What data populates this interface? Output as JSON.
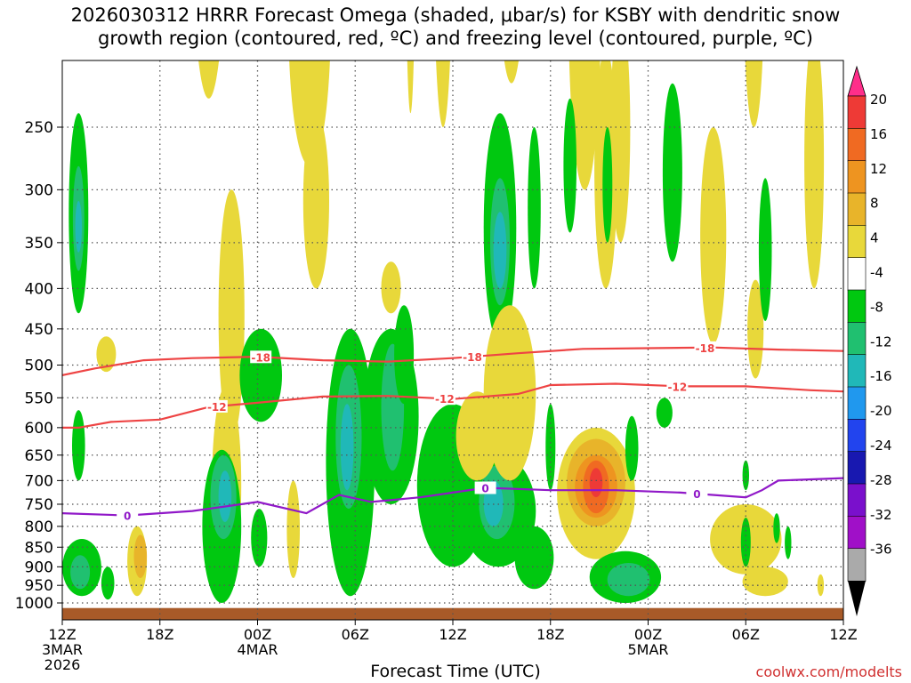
{
  "chart_data": {
    "type": "heatmap",
    "title": "2026030312 HRRR Forecast Omega (shaded, μbar/s) for KSBY with dendritic snow growth region (contoured, red, ºC) and freezing level (contoured, purple, ºC)",
    "title_lines": [
      "2026030312 HRRR Forecast Omega (shaded, μbar/s) for KSBY with dendritic snow",
      "growth region (contoured, red, ºC) and freezing level (contoured, purple, ºC)"
    ],
    "xlabel": "Forecast Time (UTC)",
    "ylabel": "",
    "credit": "coolwx.com/modelts",
    "x_range_hours": [
      0,
      48
    ],
    "x_ticks": [
      {
        "hour": 0,
        "lines": [
          "12Z",
          "3MAR",
          "2026"
        ]
      },
      {
        "hour": 6,
        "lines": [
          "18Z"
        ]
      },
      {
        "hour": 12,
        "lines": [
          "00Z",
          "4MAR"
        ]
      },
      {
        "hour": 18,
        "lines": [
          "06Z"
        ]
      },
      {
        "hour": 24,
        "lines": [
          "12Z"
        ]
      },
      {
        "hour": 30,
        "lines": [
          "18Z"
        ]
      },
      {
        "hour": 36,
        "lines": [
          "00Z",
          "5MAR"
        ]
      },
      {
        "hour": 42,
        "lines": [
          "06Z"
        ]
      },
      {
        "hour": 48,
        "lines": [
          "12Z"
        ]
      }
    ],
    "y_axis": {
      "scale": "log-pressure",
      "range_hpa": [
        1025,
        200
      ],
      "ticks": [
        250,
        300,
        350,
        400,
        450,
        500,
        550,
        600,
        650,
        700,
        750,
        800,
        850,
        900,
        950,
        1000
      ]
    },
    "colorbar": {
      "labels": [
        "20",
        "16",
        "12",
        "8",
        "4",
        "-4",
        "-8",
        "-12",
        "-16",
        "-20",
        "-24",
        "-28",
        "-32",
        "-36"
      ],
      "colors": [
        "#ff2e8a",
        "#ee3a36",
        "#f06a22",
        "#ee9420",
        "#e8b42a",
        "#e8d83a",
        "#ffffff",
        "#00c810",
        "#20c070",
        "#20b8b8",
        "#2098ee",
        "#2244ee",
        "#1818b0",
        "#7a10cc",
        "#a010c8",
        "#aaaaaa",
        "#000000"
      ]
    },
    "contours": [
      {
        "name": "-18",
        "color": "#ee4444",
        "label": "-18",
        "points": [
          [
            0,
            515
          ],
          [
            2,
            505
          ],
          [
            5,
            493
          ],
          [
            8,
            490
          ],
          [
            12,
            488
          ],
          [
            16,
            493
          ],
          [
            20,
            495
          ],
          [
            24,
            490
          ],
          [
            28,
            483
          ],
          [
            32,
            477
          ],
          [
            36,
            476
          ],
          [
            40,
            475
          ],
          [
            44,
            478
          ],
          [
            48,
            480
          ]
        ],
        "labels_at": [
          12.2,
          25.2,
          39.5
        ]
      },
      {
        "name": "-12",
        "color": "#ee4444",
        "label": "-12",
        "points": [
          [
            0,
            600
          ],
          [
            1,
            600
          ],
          [
            3,
            590
          ],
          [
            6,
            586
          ],
          [
            9,
            565
          ],
          [
            12,
            558
          ],
          [
            16,
            548
          ],
          [
            20,
            547
          ],
          [
            24,
            552
          ],
          [
            28,
            544
          ],
          [
            30,
            530
          ],
          [
            34,
            528
          ],
          [
            38,
            532
          ],
          [
            42,
            532
          ],
          [
            46,
            538
          ],
          [
            48,
            540
          ]
        ],
        "labels_at": [
          9.5,
          23.5,
          37.8
        ]
      },
      {
        "name": "0",
        "color": "#9018c8",
        "label": "0",
        "points": [
          [
            0,
            770
          ],
          [
            4,
            775
          ],
          [
            8,
            765
          ],
          [
            12,
            745
          ],
          [
            15,
            770
          ],
          [
            17,
            730
          ],
          [
            19,
            745
          ],
          [
            22,
            735
          ],
          [
            26,
            715
          ],
          [
            30,
            720
          ],
          [
            34,
            720
          ],
          [
            38,
            725
          ],
          [
            42,
            735
          ],
          [
            43,
            720
          ],
          [
            44,
            700
          ],
          [
            48,
            695
          ]
        ],
        "labels_at": [
          4.0,
          26.0,
          39.0
        ]
      }
    ],
    "terrain": {
      "color": "#a85a28",
      "top_hpa": 1015
    }
  }
}
